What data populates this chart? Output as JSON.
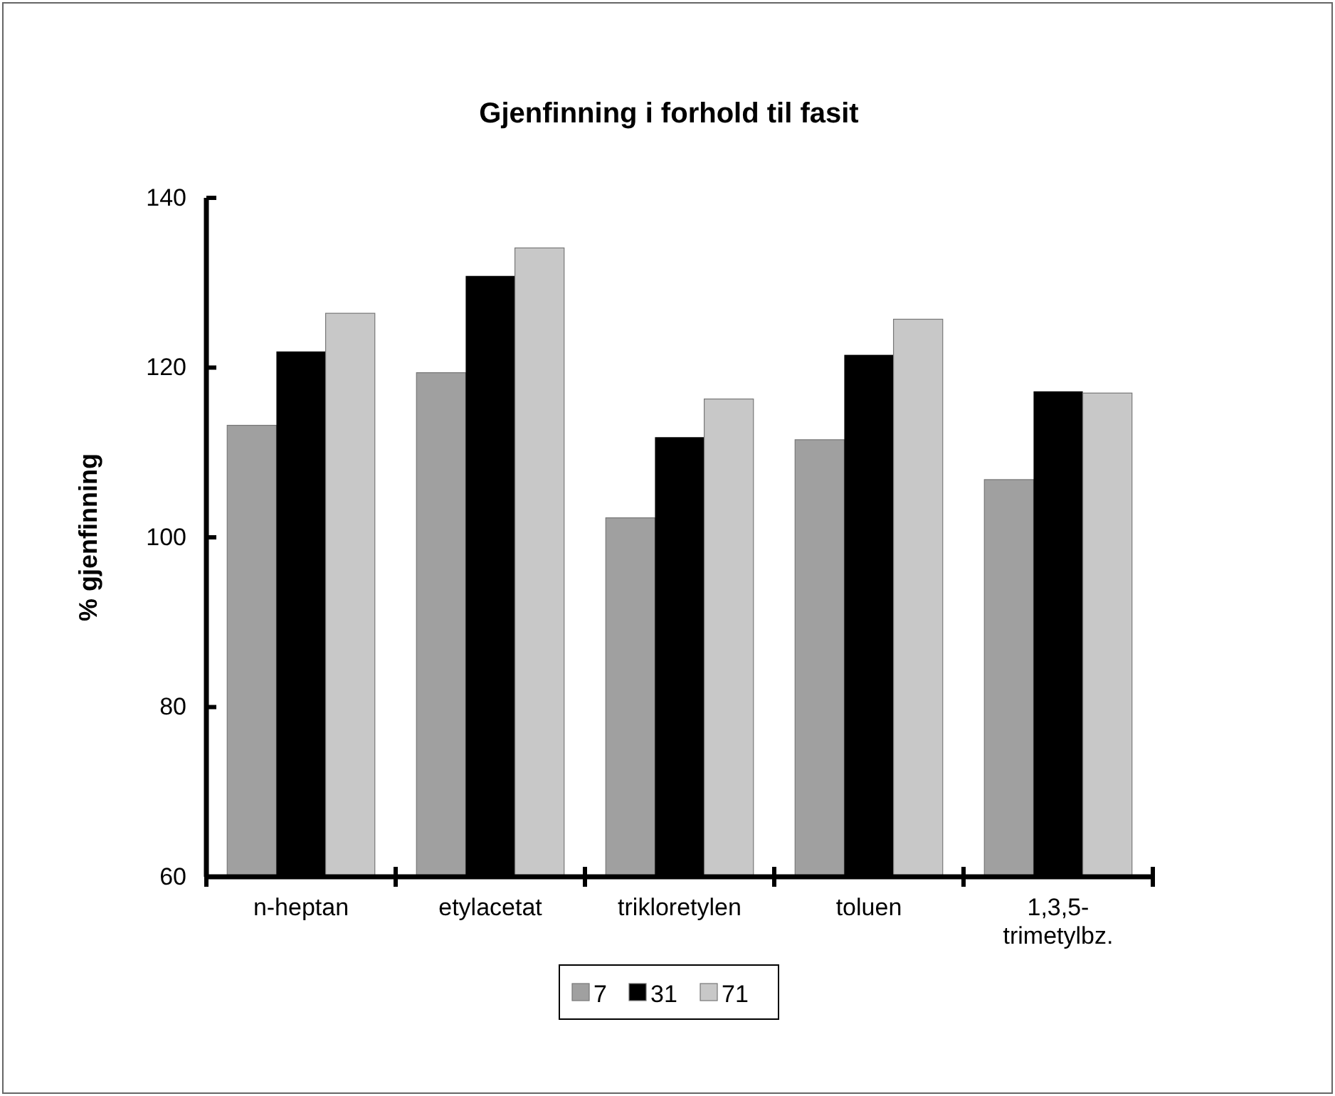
{
  "chart_data": {
    "type": "bar",
    "title": "Gjenfinning i forhold til fasit",
    "ylabel": "% gjenfinning",
    "categories": [
      "n-heptan",
      "etylacetat",
      "trikloretylen",
      "toluen",
      "1,3,5-trimetylbz."
    ],
    "series": [
      {
        "name": "7",
        "color": "#a0a0a0",
        "values": [
          113.2,
          119.4,
          102.3,
          111.5,
          106.8
        ]
      },
      {
        "name": "31",
        "color": "#000000",
        "values": [
          121.9,
          130.8,
          111.8,
          121.5,
          117.2
        ]
      },
      {
        "name": "71",
        "color": "#c8c8c8",
        "values": [
          126.4,
          134.1,
          116.3,
          125.7,
          117.0
        ]
      }
    ],
    "ylim": [
      60,
      140
    ],
    "yticks": [
      60,
      80,
      100,
      120,
      140
    ],
    "grid": false,
    "legend": "bottom"
  }
}
